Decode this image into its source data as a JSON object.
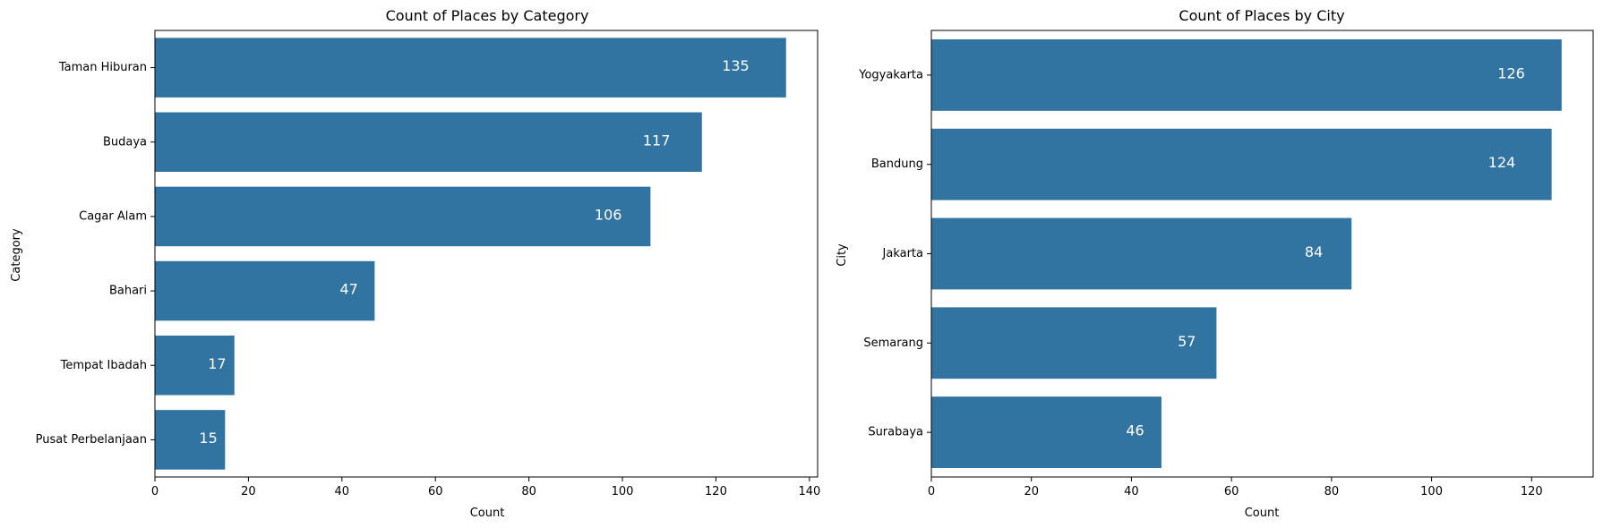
{
  "colors": {
    "bar": "#3274a1",
    "bar_label": "#ffffff"
  },
  "chart_data": [
    {
      "type": "bar",
      "orientation": "horizontal",
      "title": "Count of Places by Category",
      "xlabel": "Count",
      "ylabel": "Category",
      "categories": [
        "Taman Hiburan",
        "Budaya",
        "Cagar Alam",
        "Bahari",
        "Tempat Ibadah",
        "Pusat Perbelanjaan"
      ],
      "values": [
        135,
        117,
        106,
        47,
        17,
        15
      ],
      "xlim": [
        0,
        141.75
      ],
      "xticks": [
        0,
        20,
        40,
        60,
        80,
        100,
        120,
        140
      ],
      "grid": false
    },
    {
      "type": "bar",
      "orientation": "horizontal",
      "title": "Count of Places by City",
      "xlabel": "Count",
      "ylabel": "City",
      "categories": [
        "Yogyakarta",
        "Bandung",
        "Jakarta",
        "Semarang",
        "Surabaya"
      ],
      "values": [
        126,
        124,
        84,
        57,
        46
      ],
      "xlim": [
        0,
        132.3
      ],
      "xticks": [
        0,
        20,
        40,
        60,
        80,
        100,
        120
      ],
      "grid": false
    }
  ]
}
